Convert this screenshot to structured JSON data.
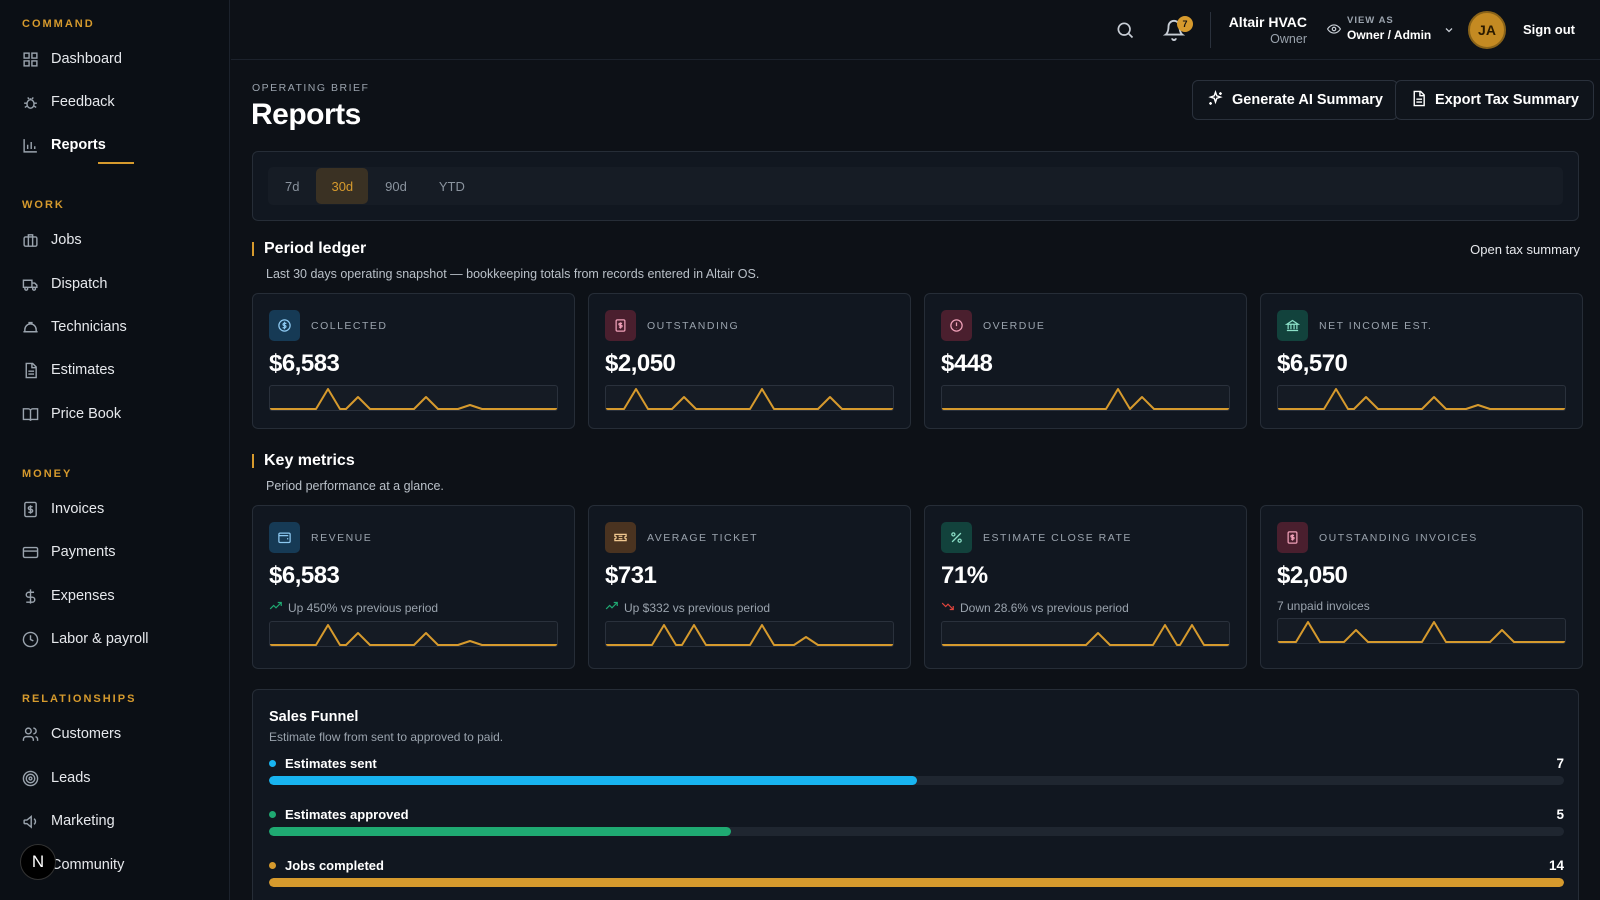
{
  "sidebar": {
    "sections": [
      {
        "title": "COMMAND",
        "items": [
          {
            "label": "Dashboard",
            "icon": "dashboard-icon"
          },
          {
            "label": "Feedback",
            "icon": "bug-icon"
          },
          {
            "label": "Reports",
            "icon": "bar-chart-icon",
            "active": true
          }
        ]
      },
      {
        "title": "WORK",
        "items": [
          {
            "label": "Jobs",
            "icon": "briefcase-icon"
          },
          {
            "label": "Dispatch",
            "icon": "truck-icon"
          },
          {
            "label": "Technicians",
            "icon": "hard-hat-icon"
          },
          {
            "label": "Estimates",
            "icon": "document-icon"
          },
          {
            "label": "Price Book",
            "icon": "book-icon"
          }
        ]
      },
      {
        "title": "MONEY",
        "items": [
          {
            "label": "Invoices",
            "icon": "receipt-icon"
          },
          {
            "label": "Payments",
            "icon": "credit-card-icon"
          },
          {
            "label": "Expenses",
            "icon": "dollar-icon"
          },
          {
            "label": "Labor & payroll",
            "icon": "clock-icon"
          }
        ]
      },
      {
        "title": "RELATIONSHIPS",
        "items": [
          {
            "label": "Customers",
            "icon": "users-icon"
          },
          {
            "label": "Leads",
            "icon": "target-icon"
          },
          {
            "label": "Marketing",
            "icon": "megaphone-icon"
          },
          {
            "label": "Community",
            "icon": "community-icon"
          }
        ]
      }
    ],
    "badge": "N"
  },
  "topbar": {
    "notification_count": "7",
    "company_name": "Altair HVAC",
    "company_role": "Owner",
    "view_as_label": "VIEW AS",
    "view_as_value": "Owner / Admin",
    "avatar_initials": "JA",
    "signout": "Sign out"
  },
  "header": {
    "eyebrow": "OPERATING BRIEF",
    "title": "Reports",
    "ai_button": "Generate AI Summary",
    "export_button": "Export Tax Summary"
  },
  "ranges": [
    {
      "label": "7d"
    },
    {
      "label": "30d",
      "active": true
    },
    {
      "label": "90d"
    },
    {
      "label": "YTD"
    }
  ],
  "ledger": {
    "title": "Period ledger",
    "subtitle": "Last 30 days operating snapshot — bookkeeping totals from records entered in Altair OS.",
    "link": "Open tax summary",
    "cards": [
      {
        "label": "COLLECTED",
        "value": "$6,583",
        "icon": "dollar-circle-icon",
        "icon_bg": "#163a55",
        "icon_color": "#8cc8f0"
      },
      {
        "label": "OUTSTANDING",
        "value": "$2,050",
        "icon": "invoice-icon",
        "icon_bg": "#4a1f2e",
        "icon_color": "#f0a0b8"
      },
      {
        "label": "OVERDUE",
        "value": "$448",
        "icon": "alert-circle-icon",
        "icon_bg": "#4a1f2e",
        "icon_color": "#f0a0b8"
      },
      {
        "label": "NET INCOME EST.",
        "value": "$6,570",
        "icon": "bank-icon",
        "icon_bg": "#12423c",
        "icon_color": "#8ce0c8"
      }
    ]
  },
  "metrics": {
    "title": "Key metrics",
    "subtitle": "Period performance at a glance.",
    "cards": [
      {
        "label": "REVENUE",
        "value": "$6,583",
        "icon": "wallet-icon",
        "icon_bg": "#163a55",
        "icon_color": "#8cc8f0",
        "delta": "Up 450% vs previous period",
        "trend": "up"
      },
      {
        "label": "AVERAGE TICKET",
        "value": "$731",
        "icon": "ticket-icon",
        "icon_bg": "#4a3320",
        "icon_color": "#f0c890",
        "delta": "Up $332 vs previous period",
        "trend": "up"
      },
      {
        "label": "ESTIMATE CLOSE RATE",
        "value": "71%",
        "icon": "percent-icon",
        "icon_bg": "#12423c",
        "icon_color": "#8ce0c8",
        "delta": "Down 28.6% vs previous period",
        "trend": "down"
      },
      {
        "label": "OUTSTANDING INVOICES",
        "value": "$2,050",
        "icon": "invoice-icon",
        "icon_bg": "#4a1f2e",
        "icon_color": "#f0a0b8",
        "delta": "7 unpaid invoices",
        "trend": "none"
      }
    ]
  },
  "funnel": {
    "title": "Sales Funnel",
    "subtitle": "Estimate flow from sent to approved to paid.",
    "rows": [
      {
        "label": "Estimates sent",
        "count": "7",
        "fraction": 0.5,
        "color": "#18b4f0"
      },
      {
        "label": "Estimates approved",
        "count": "5",
        "fraction": 0.357,
        "color": "#1faa72"
      },
      {
        "label": "Jobs completed",
        "count": "14",
        "fraction": 1.0,
        "color": "#d69a2d"
      }
    ]
  },
  "colors": {
    "accent": "#d69a2d",
    "up": "#1faa72",
    "down": "#e0443c"
  }
}
